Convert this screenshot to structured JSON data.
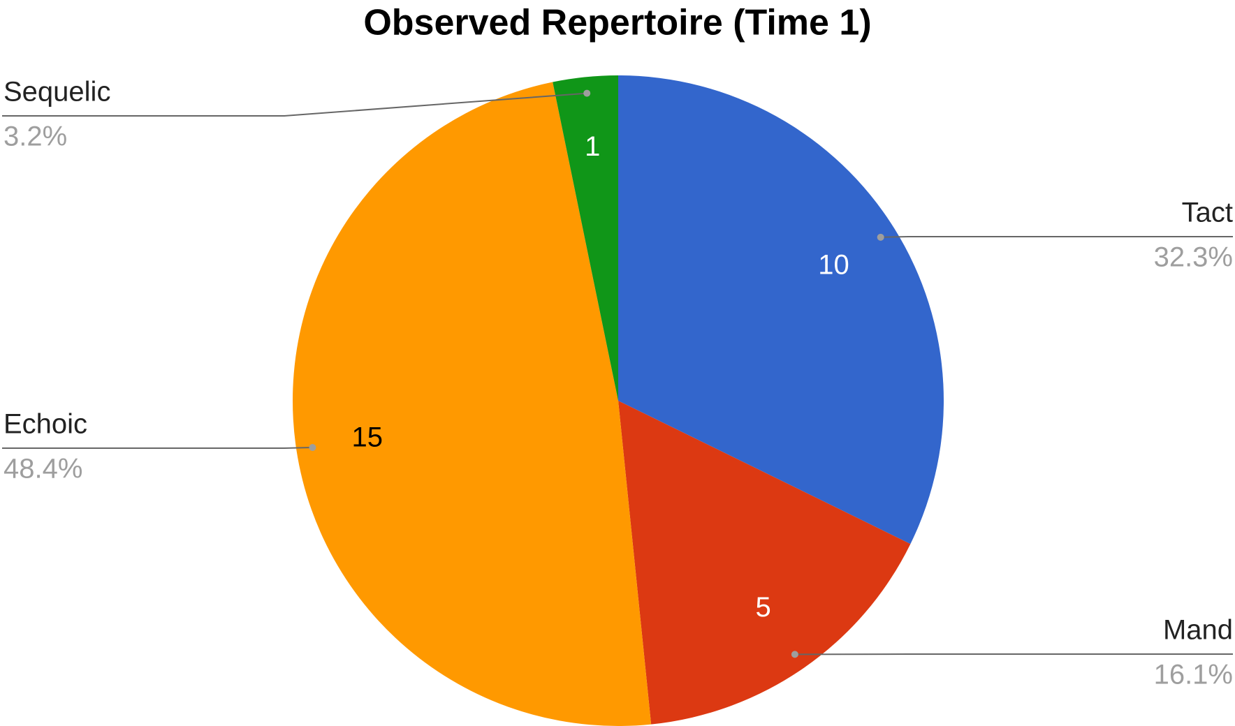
{
  "chart_data": {
    "type": "pie",
    "title": "Observed Repertoire (Time 1)",
    "categories": [
      "Tact",
      "Mand",
      "Echoic",
      "Sequelic"
    ],
    "values": [
      10,
      5,
      15,
      1
    ],
    "percent_labels": [
      "32.3%",
      "16.1%",
      "48.4%",
      "3.2%"
    ],
    "colors": [
      "#3366cc",
      "#dc3912",
      "#ff9900",
      "#109618"
    ],
    "value_label_colors": [
      "#ffffff",
      "#ffffff",
      "#000000",
      "#ffffff"
    ]
  }
}
